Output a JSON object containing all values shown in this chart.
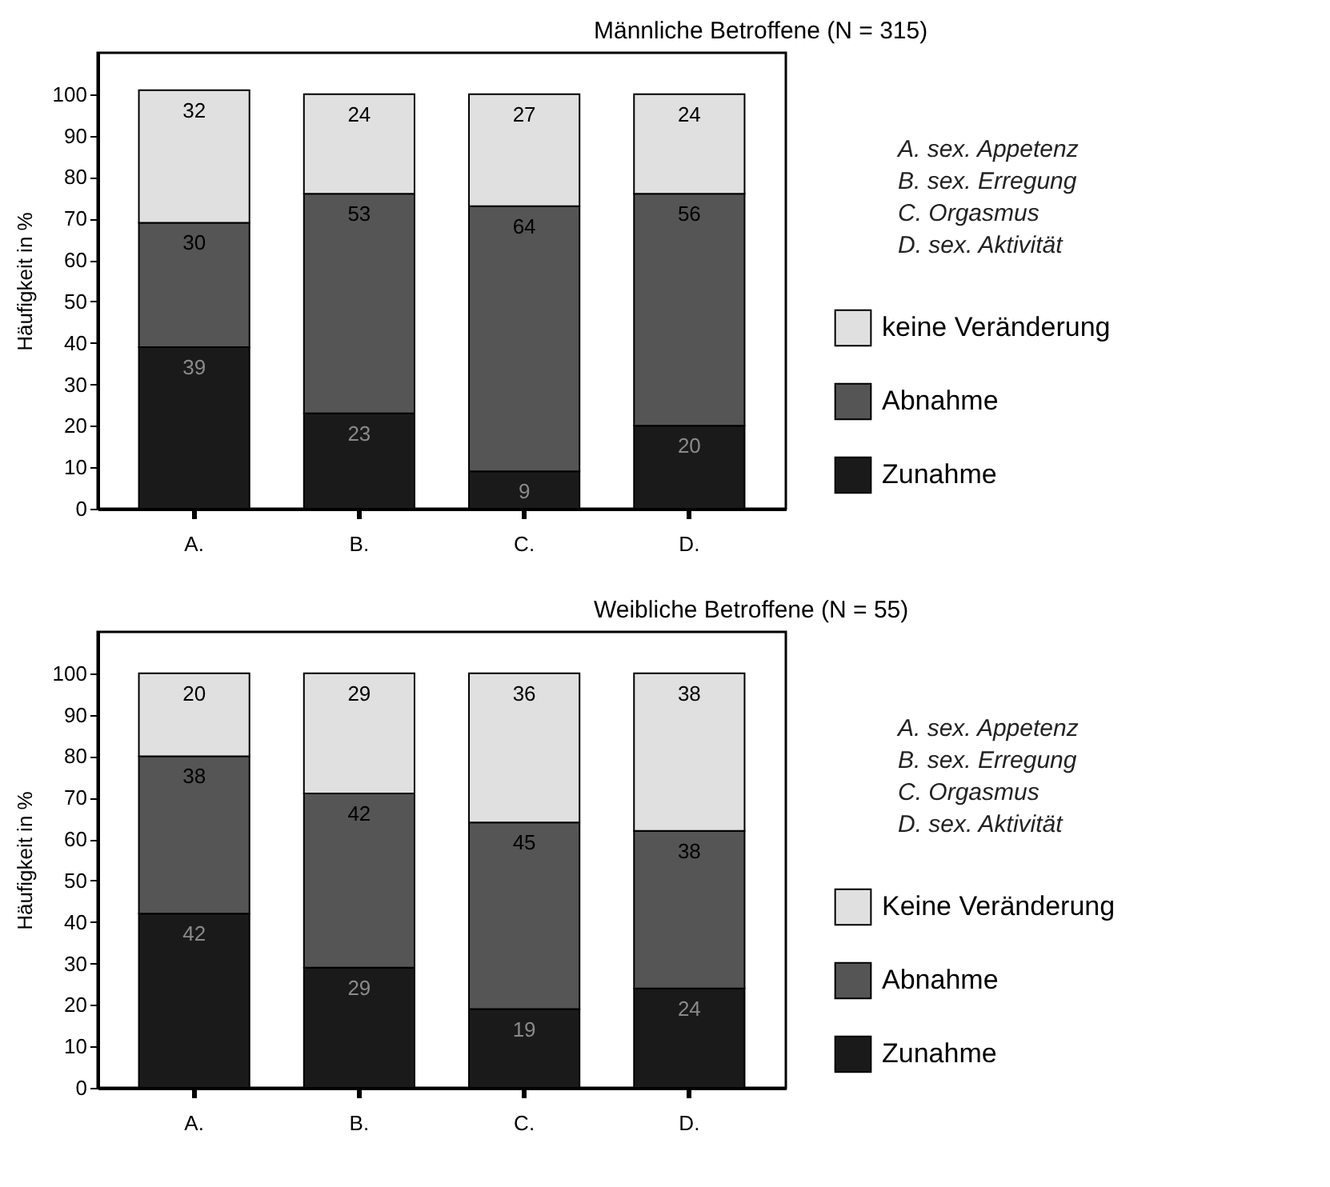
{
  "chart_data": [
    {
      "type": "bar",
      "title": "Männliche Betroffene (N = 315)",
      "ylabel": "Häufigkeit in %",
      "categories": [
        "A.",
        "B.",
        "C.",
        "D."
      ],
      "stacked": true,
      "data_labels": true,
      "legend": "right",
      "ylim": [
        0,
        110
      ],
      "yticks": [
        0,
        10,
        20,
        30,
        40,
        50,
        60,
        70,
        80,
        90,
        100
      ],
      "annotations": [
        "A.  sex. Appetenz",
        "B.  sex. Erregung",
        "C.  Orgasmus",
        "D.  sex. Aktivität"
      ],
      "series": [
        {
          "name": "Zunahme",
          "color": "#1a1a1a",
          "values": [
            39,
            23,
            9,
            20
          ]
        },
        {
          "name": "Abnahme",
          "color": "#555555",
          "values": [
            30,
            53,
            64,
            56
          ]
        },
        {
          "name": "keine Veränderung",
          "color": "#e0e0e0",
          "values": [
            32,
            24,
            27,
            24
          ]
        }
      ]
    },
    {
      "type": "bar",
      "title": "Weibliche Betroffene (N = 55)",
      "ylabel": "Häufigkeit in %",
      "categories": [
        "A.",
        "B.",
        "C.",
        "D."
      ],
      "stacked": true,
      "data_labels": true,
      "legend": "right",
      "ylim": [
        0,
        110
      ],
      "yticks": [
        0,
        10,
        20,
        30,
        40,
        50,
        60,
        70,
        80,
        90,
        100
      ],
      "annotations": [
        "A.  sex. Appetenz",
        "B.  sex. Erregung",
        "C.  Orgasmus",
        "D.  sex. Aktivität"
      ],
      "series": [
        {
          "name": "Zunahme",
          "color": "#1a1a1a",
          "values": [
            42,
            29,
            19,
            24
          ]
        },
        {
          "name": "Abnahme",
          "color": "#555555",
          "values": [
            38,
            42,
            45,
            38
          ]
        },
        {
          "name": "Keine Veränderung",
          "color": "#e0e0e0",
          "values": [
            20,
            29,
            36,
            38
          ]
        }
      ]
    }
  ]
}
